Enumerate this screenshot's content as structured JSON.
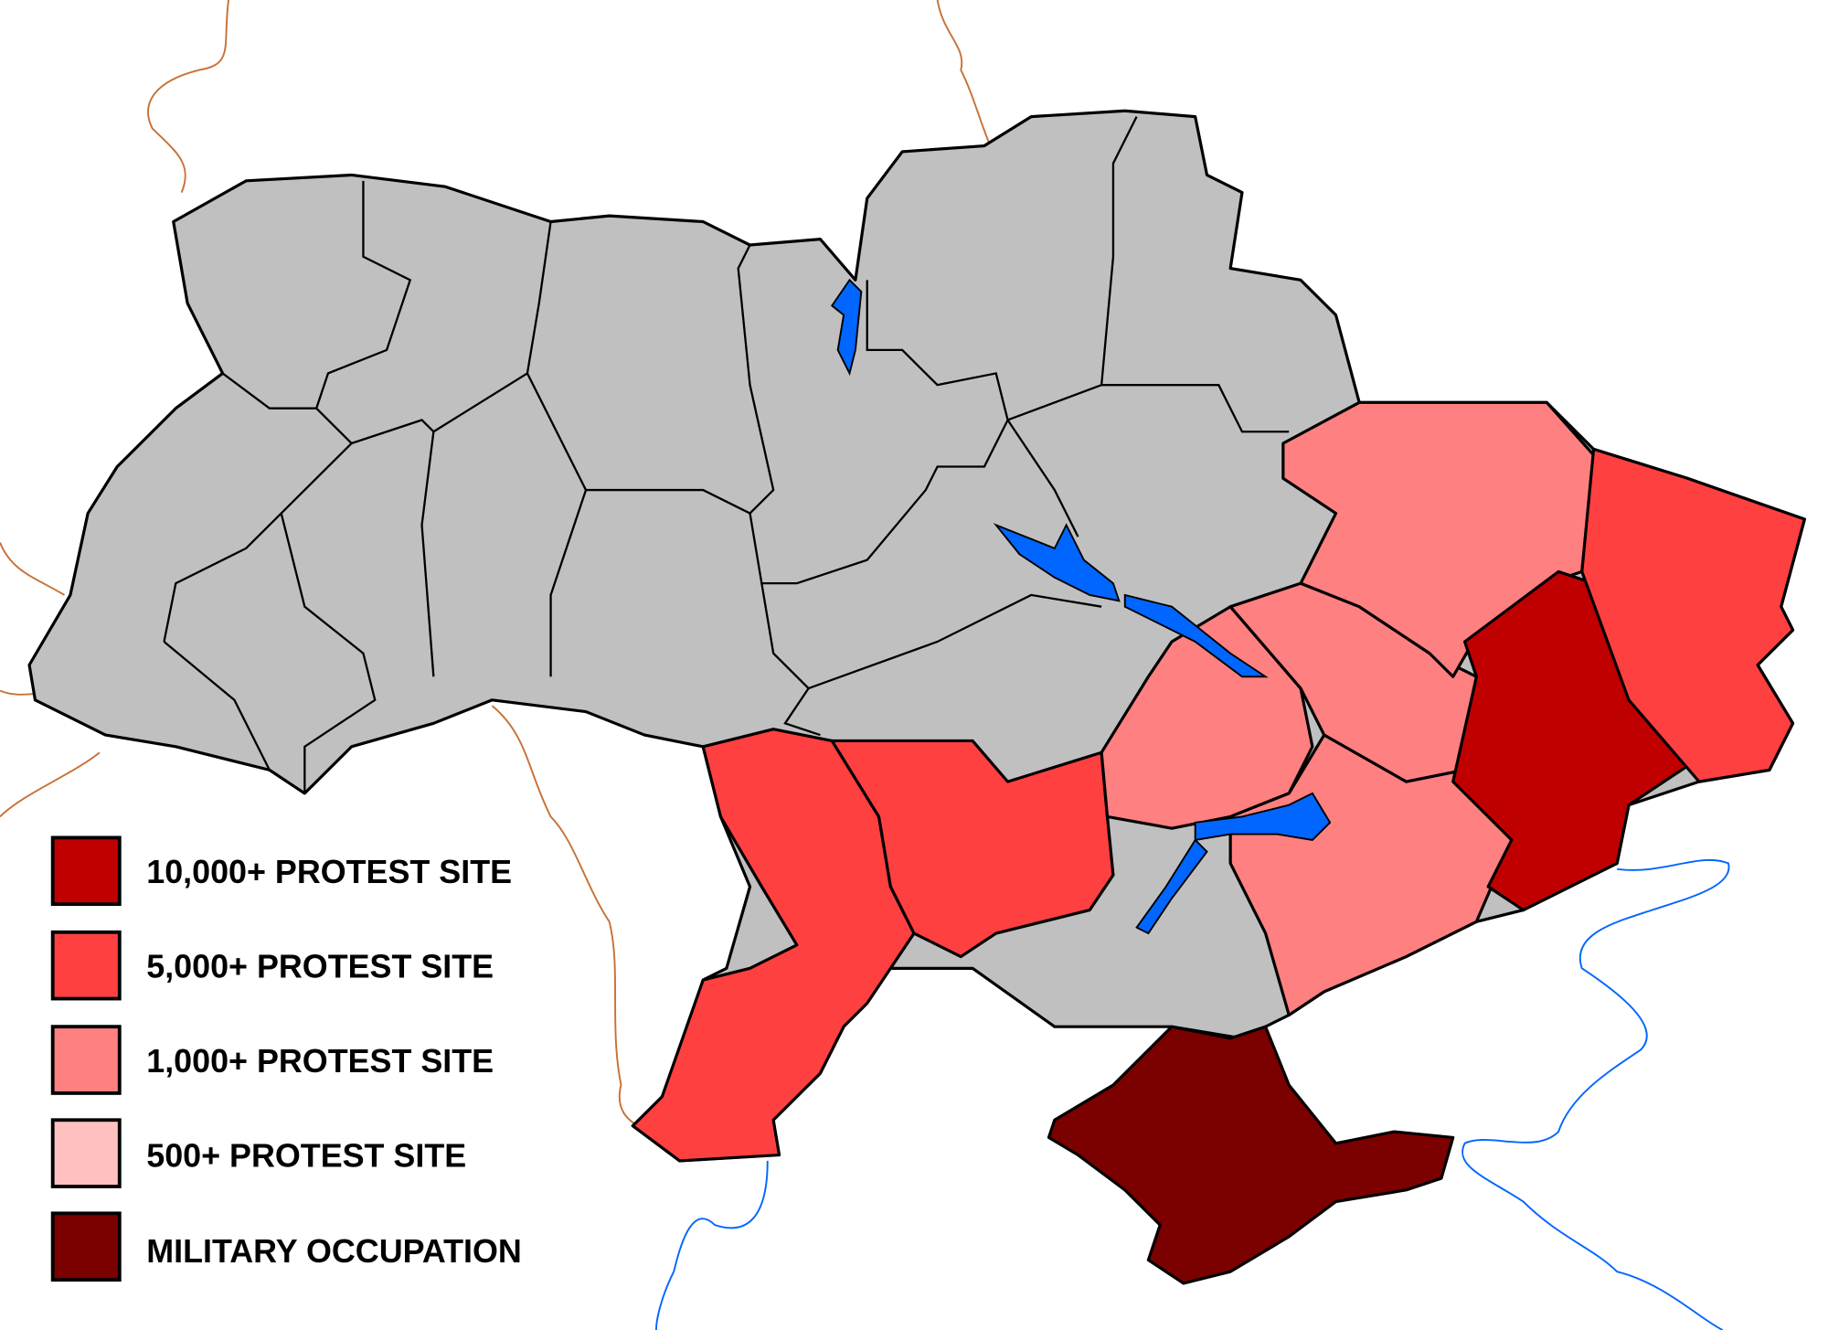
{
  "colors": {
    "no_data": "#c0c0c0",
    "protest_10000": "#c00000",
    "protest_5000": "#ff4040",
    "protest_1000": "#ff8080",
    "protest_500": "#ffc0c0",
    "occupation": "#7b0000",
    "water": "#0066ff",
    "border": "#c87137"
  },
  "legend": [
    {
      "label": "10,000+ PROTEST SITE",
      "color": "#c00000"
    },
    {
      "label": "5,000+ PROTEST SITE",
      "color": "#ff4040"
    },
    {
      "label": "1,000+ PROTEST SITE",
      "color": "#ff8080"
    },
    {
      "label": "500+ PROTEST SITE",
      "color": "#ffc0c0"
    },
    {
      "label": "MILITARY OCCUPATION",
      "color": "#7b0000"
    }
  ],
  "regions": [
    {
      "category": "10,000+ PROTEST SITE",
      "fill": "#c00000"
    },
    {
      "category": "5,000+ PROTEST SITE",
      "fill": "#ff4040"
    },
    {
      "category": "1,000+ PROTEST SITE",
      "fill": "#ff8080"
    },
    {
      "category": "MILITARY OCCUPATION",
      "fill": "#7b0000"
    }
  ]
}
